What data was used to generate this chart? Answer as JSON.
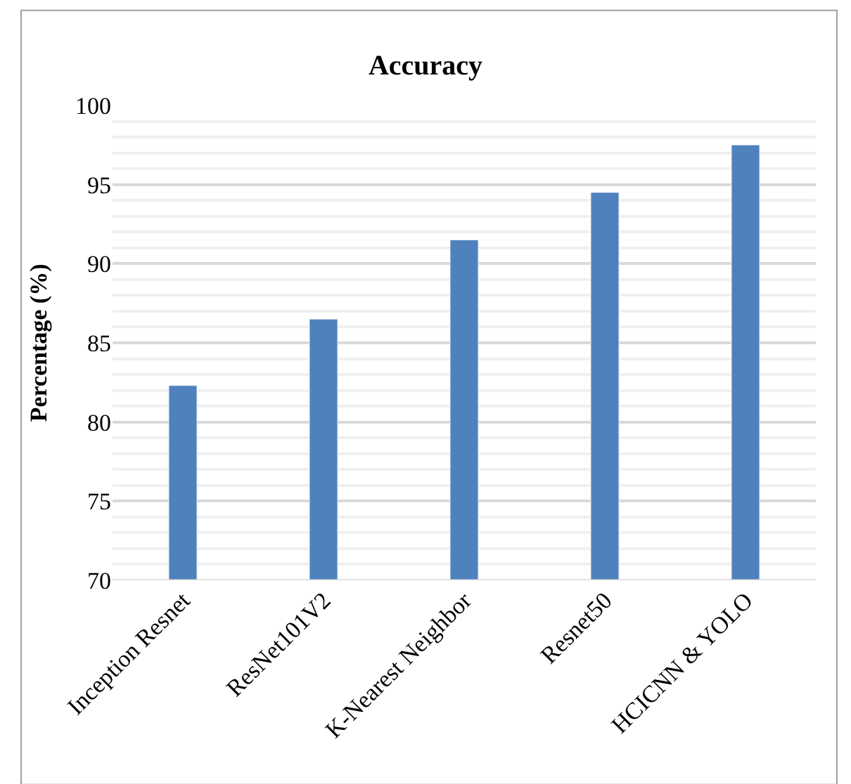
{
  "chart_data": {
    "type": "bar",
    "title": "Accuracy",
    "ylabel": "Percentage (%)",
    "categories": [
      "Inception Resnet",
      "ResNet101V2",
      "K-Nearest Neighbor",
      "Resnet50",
      "HCICNN & YOLO"
    ],
    "values": [
      82.3,
      86.5,
      91.5,
      94.5,
      97.5
    ],
    "color": "#4f81bd",
    "ylim": [
      70,
      100
    ],
    "yticks": [
      70,
      75,
      80,
      85,
      90,
      95,
      100
    ],
    "grid": "y"
  }
}
